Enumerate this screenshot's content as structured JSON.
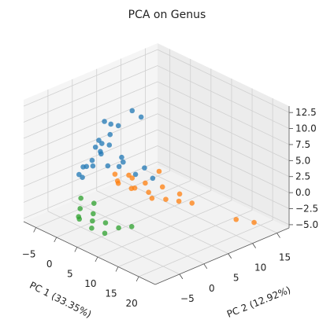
{
  "chart_data": {
    "type": "scatter3d",
    "title": "PCA on Genus",
    "xlabel": "PC 1 (33.35%)",
    "ylabel": "PC 2 (12.92%)",
    "xlim": [
      -8,
      24
    ],
    "ylim": [
      -10,
      17.5
    ],
    "zlim": [
      -5.5,
      13.5
    ],
    "xticks": [
      {
        "value": -5,
        "label": "−5"
      },
      0,
      5,
      10,
      15,
      20
    ],
    "yticks": [
      {
        "value": -5,
        "label": "−5"
      },
      0,
      5,
      10,
      15
    ],
    "zticks": [
      {
        "value": -5,
        "label": "−5.0"
      },
      {
        "value": -2.5,
        "label": "−2.5"
      },
      {
        "value": 0,
        "label": "0.0"
      },
      {
        "value": 2.5,
        "label": "2.5"
      },
      {
        "value": 5,
        "label": "5.0"
      },
      {
        "value": 7.5,
        "label": "7.5"
      },
      {
        "value": 10,
        "label": "10.0"
      },
      {
        "value": 12.5,
        "label": "12.5"
      }
    ],
    "grid": true,
    "series": [
      {
        "color": "#1f77b4",
        "x": [
          -3,
          -2,
          -1,
          0,
          1,
          0,
          -1,
          2,
          1,
          3,
          4,
          -2,
          -4,
          -3,
          2,
          5,
          6,
          8,
          3,
          0,
          -1,
          1,
          4,
          -2,
          2
        ],
        "y": [
          -2,
          -1,
          0,
          -1,
          0,
          1,
          2,
          1,
          -1,
          3,
          4,
          -3,
          -2,
          0,
          2,
          2,
          3,
          3,
          -2,
          -2,
          -3,
          2,
          0,
          1,
          -3
        ],
        "z": [
          2,
          3,
          4,
          5,
          6,
          7,
          8,
          9,
          10,
          11,
          10,
          1,
          0.5,
          1.5,
          3,
          2,
          3,
          2,
          4,
          6,
          3,
          2,
          5,
          5,
          8
        ]
      },
      {
        "color": "#ff7f0e",
        "x": [
          0,
          2,
          3,
          4,
          5,
          6,
          7,
          8,
          9,
          10,
          11,
          12,
          6,
          3,
          14,
          20,
          22,
          1
        ],
        "y": [
          2,
          1,
          3,
          2,
          4,
          1,
          3,
          5,
          2,
          4,
          6,
          5,
          6,
          0,
          6,
          10,
          12,
          4
        ],
        "z": [
          0.5,
          0,
          0.5,
          -0.5,
          0,
          0.5,
          -0.5,
          0,
          -0.5,
          -1,
          -0.5,
          -1,
          1.5,
          1,
          -1,
          -3,
          -3.5,
          0
        ]
      },
      {
        "color": "#2ca02c",
        "x": [
          1,
          2,
          3,
          4,
          5,
          2,
          6,
          7,
          8,
          10,
          3,
          0
        ],
        "y": [
          -6,
          -7,
          -5,
          -6,
          -7,
          -4,
          -5,
          -6,
          -4,
          -3,
          -8,
          -5
        ],
        "z": [
          -2,
          -3,
          -2.5,
          -3,
          -3.5,
          -1.5,
          -3,
          -4,
          -3.5,
          -3,
          -2,
          -1
        ]
      }
    ]
  }
}
